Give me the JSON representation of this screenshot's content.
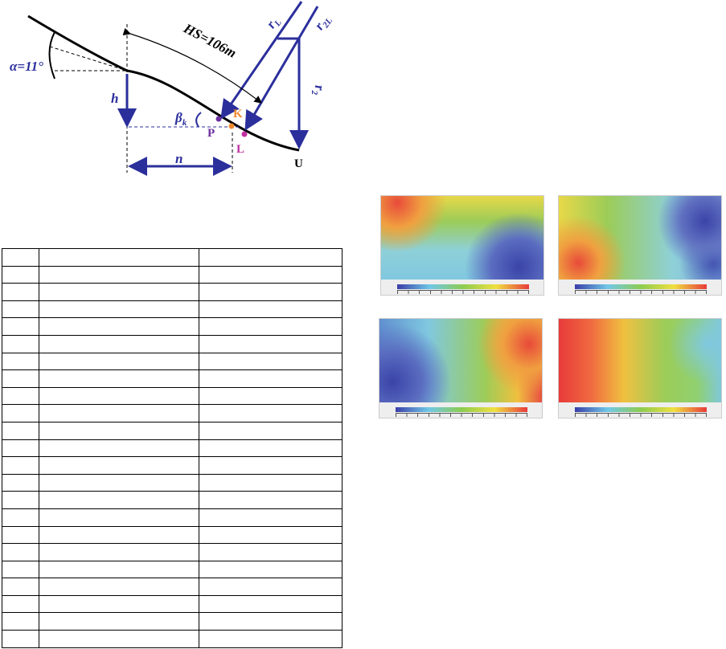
{
  "diagram": {
    "labels": {
      "alpha": "α=11°",
      "hs": "HS=106m",
      "h": "h",
      "beta": {
        "main": "β",
        "sub": "k"
      },
      "p": "P",
      "k": "K",
      "l": "L",
      "u": "U",
      "n": "n",
      "rl": {
        "main": "r",
        "sub": "L"
      },
      "r2l": {
        "main": "r",
        "sub": "2L"
      },
      "r2": {
        "main": "r",
        "sub": "2"
      }
    }
  }
}
